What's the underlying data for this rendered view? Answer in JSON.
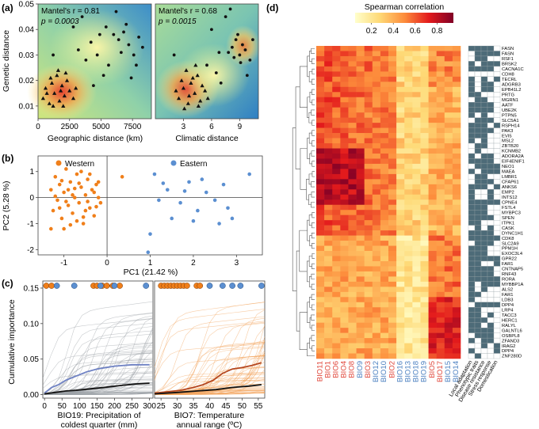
{
  "chart_data": [
    {
      "panel": "(a)",
      "type": "scatter",
      "subplots": [
        {
          "xlabel": "Geographic distance (km)",
          "ylabel": "Genetic distance",
          "xticks": [
            "0",
            "2500",
            "5000",
            "7500"
          ],
          "xlim": [
            0,
            9000
          ],
          "yticks": [
            "0.01",
            "0.02",
            "0.03",
            "0.04",
            "0.05"
          ],
          "ylim": [
            0.005,
            0.05
          ],
          "stat_r": "Mantel's r = 0.81",
          "stat_p": "p = 0.0003",
          "triangles": [
            [
              400,
              0.013
            ],
            [
              600,
              0.017
            ],
            [
              900,
              0.011
            ],
            [
              1100,
              0.019
            ],
            [
              1300,
              0.015
            ],
            [
              1500,
              0.022
            ],
            [
              1700,
              0.012
            ],
            [
              1900,
              0.018
            ],
            [
              2100,
              0.014
            ],
            [
              2300,
              0.02
            ],
            [
              2500,
              0.016
            ],
            [
              2800,
              0.013
            ],
            [
              1000,
              0.021
            ],
            [
              1600,
              0.024
            ],
            [
              2200,
              0.023
            ],
            [
              700,
              0.015
            ],
            [
              1200,
              0.01
            ],
            [
              2000,
              0.01
            ],
            [
              3000,
              0.017
            ],
            [
              1800,
              0.016
            ]
          ],
          "circles": [
            [
              3200,
              0.032
            ],
            [
              3800,
              0.028
            ],
            [
              4200,
              0.035
            ],
            [
              4700,
              0.03
            ],
            [
              5200,
              0.022
            ],
            [
              5600,
              0.026
            ],
            [
              6000,
              0.038
            ],
            [
              6400,
              0.036
            ],
            [
              6800,
              0.039
            ],
            [
              7200,
              0.034
            ],
            [
              7600,
              0.03
            ],
            [
              8000,
              0.037
            ],
            [
              5400,
              0.041
            ],
            [
              6600,
              0.031
            ],
            [
              4400,
              0.018
            ],
            [
              7000,
              0.042
            ],
            [
              7800,
              0.026
            ],
            [
              3500,
              0.045
            ],
            [
              6200,
              0.047
            ],
            [
              8300,
              0.033
            ],
            [
              1200,
              0.03
            ],
            [
              4900,
              0.038
            ],
            [
              7400,
              0.021
            ],
            [
              2800,
              0.041
            ]
          ]
        },
        {
          "xlabel": "Climatic distance",
          "ylabel": "",
          "xticks": [
            "3",
            "6",
            "9"
          ],
          "xlim": [
            0,
            11
          ],
          "yticks": [],
          "ylim": [
            0.005,
            0.05
          ],
          "stat_r": "Mantel's r = 0.68",
          "stat_p": "p = 0.0015",
          "triangles": [
            [
              2.5,
              0.013
            ],
            [
              3,
              0.017
            ],
            [
              3.5,
              0.011
            ],
            [
              3.8,
              0.019
            ],
            [
              4.2,
              0.015
            ],
            [
              4.5,
              0.022
            ],
            [
              4.8,
              0.012
            ],
            [
              5,
              0.018
            ],
            [
              2.8,
              0.02
            ],
            [
              3.3,
              0.024
            ],
            [
              4,
              0.021
            ],
            [
              5.3,
              0.016
            ],
            [
              3.6,
              0.014
            ],
            [
              2.2,
              0.016
            ],
            [
              4.6,
              0.01
            ],
            [
              5.6,
              0.013
            ],
            [
              3.1,
              0.009
            ],
            [
              4.3,
              0.026
            ]
          ],
          "circles": [
            [
              8.2,
              0.033
            ],
            [
              8.6,
              0.036
            ],
            [
              9,
              0.03
            ],
            [
              9.3,
              0.034
            ],
            [
              8.8,
              0.038
            ],
            [
              9.6,
              0.032
            ],
            [
              8.4,
              0.029
            ],
            [
              7.8,
              0.031
            ],
            [
              9.1,
              0.027
            ],
            [
              6.5,
              0.023
            ],
            [
              7,
              0.019
            ],
            [
              5.5,
              0.026
            ],
            [
              6,
              0.04
            ],
            [
              7.5,
              0.045
            ],
            [
              8,
              0.048
            ],
            [
              10.1,
              0.028
            ],
            [
              2,
              0.03
            ],
            [
              10.4,
              0.036
            ],
            [
              6.8,
              0.031
            ],
            [
              9.8,
              0.022
            ]
          ]
        }
      ]
    },
    {
      "panel": "(b)",
      "type": "scatter",
      "xlabel": "PC1 (21.42 %)",
      "ylabel": "PC2 (5.28 %)",
      "xticks": [
        "-1",
        "0",
        "1",
        "2",
        "3"
      ],
      "xlim": [
        -1.6,
        3.6
      ],
      "yticks": [
        "-2",
        "-1",
        "0",
        "1"
      ],
      "ylim": [
        -2.2,
        1.6
      ],
      "legend": [
        {
          "label": "Western",
          "color": "#f07f1a"
        },
        {
          "label": "Eastern",
          "color": "#5b8fd1"
        }
      ],
      "series": [
        {
          "name": "Western",
          "color": "#f07f1a",
          "points": [
            [
              -1.3,
              0.3
            ],
            [
              -1.25,
              -0.5
            ],
            [
              -1.2,
              0.8
            ],
            [
              -1.15,
              -0.1
            ],
            [
              -1.1,
              0.5
            ],
            [
              -1.05,
              -0.8
            ],
            [
              -1.0,
              0.2
            ],
            [
              -0.95,
              1.1
            ],
            [
              -0.9,
              -0.3
            ],
            [
              -0.85,
              0.6
            ],
            [
              -0.8,
              -0.6
            ],
            [
              -0.75,
              0.0
            ],
            [
              -0.7,
              0.9
            ],
            [
              -0.65,
              -0.2
            ],
            [
              -0.6,
              0.4
            ],
            [
              -0.55,
              -1.0
            ],
            [
              -0.5,
              0.1
            ],
            [
              -0.45,
              0.7
            ],
            [
              -0.4,
              -0.4
            ],
            [
              -0.35,
              0.3
            ],
            [
              -0.3,
              -0.7
            ],
            [
              -0.25,
              0.5
            ],
            [
              -0.2,
              0.0
            ],
            [
              -0.15,
              -0.2
            ],
            [
              -1.1,
              -0.4
            ],
            [
              -0.9,
              0.3
            ],
            [
              -0.7,
              -0.9
            ],
            [
              -0.6,
              1.0
            ],
            [
              -0.8,
              0.1
            ],
            [
              -1.0,
              -1.2
            ],
            [
              -0.5,
              -0.5
            ],
            [
              -0.4,
              0.9
            ],
            [
              -0.3,
              0.2
            ],
            [
              -0.65,
              0.55
            ],
            [
              -0.95,
              -0.15
            ],
            [
              -1.2,
              0.05
            ],
            [
              -0.85,
              -1.05
            ],
            [
              -0.45,
              -0.15
            ],
            [
              -0.75,
              0.35
            ],
            [
              -0.55,
              -0.75
            ],
            [
              -0.25,
              -0.35
            ],
            [
              -1.05,
              0.65
            ],
            [
              0.35,
              0.8
            ],
            [
              -1.3,
              -1.2
            ],
            [
              -0.2,
              0.6
            ]
          ]
        },
        {
          "name": "Eastern",
          "color": "#5b8fd1",
          "points": [
            [
              1.1,
              0.9
            ],
            [
              1.4,
              0.3
            ],
            [
              1.7,
              -0.2
            ],
            [
              1.9,
              0.6
            ],
            [
              2.1,
              -0.5
            ],
            [
              2.3,
              0.2
            ],
            [
              2.5,
              -0.1
            ],
            [
              2.7,
              0.5
            ],
            [
              2.9,
              -0.8
            ],
            [
              1.5,
              -0.8
            ],
            [
              2.0,
              -0.9
            ],
            [
              2.6,
              -1.0
            ],
            [
              1.2,
              -0.1
            ],
            [
              3.3,
              0.9
            ],
            [
              1.0,
              -1.4
            ],
            [
              0.95,
              -2.1
            ],
            [
              2.2,
              0.7
            ],
            [
              1.8,
              0.25
            ],
            [
              2.8,
              -0.4
            ],
            [
              1.3,
              0.55
            ]
          ]
        }
      ]
    },
    {
      "panel": "(c)",
      "type": "line",
      "ylabel": "Cumulative importance",
      "yticks": [
        "0.00",
        "0.05",
        "0.10",
        "0.15"
      ],
      "ylim": [
        -0.005,
        0.16
      ],
      "subplots": [
        {
          "xlabel_line1": "BIO19: Precipitation of",
          "xlabel_line2": "coldest quarter (mm)",
          "xticks": [
            "0",
            "50",
            "100",
            "150",
            "200",
            "250",
            "300"
          ],
          "xlim": [
            -5,
            310
          ],
          "rug_orange": [
            5,
            20,
            140,
            150,
            165,
            178,
            195,
            215
          ],
          "rug_blue": [
            35,
            85,
            160,
            200,
            290
          ],
          "median_blue": [
            [
              0,
              0.002
            ],
            [
              20,
              0.01
            ],
            [
              40,
              0.014
            ],
            [
              60,
              0.02
            ],
            [
              90,
              0.026
            ],
            [
              120,
              0.032
            ],
            [
              150,
              0.036
            ],
            [
              200,
              0.04
            ],
            [
              250,
              0.042
            ],
            [
              300,
              0.042
            ]
          ],
          "median_black": [
            [
              0,
              0.001
            ],
            [
              30,
              0.003
            ],
            [
              60,
              0.005
            ],
            [
              90,
              0.006
            ],
            [
              130,
              0.008
            ],
            [
              170,
              0.01
            ],
            [
              220,
              0.013
            ],
            [
              260,
              0.015
            ],
            [
              300,
              0.016
            ]
          ]
        },
        {
          "xlabel_line1": "BIO7: Temperature",
          "xlabel_line2": "annual range (ºC)",
          "xticks": [
            "25",
            "30",
            "35",
            "40",
            "45",
            "50",
            "55"
          ],
          "xlim": [
            23,
            57
          ],
          "rug_orange": [
            25,
            26,
            27,
            28,
            29,
            30,
            31,
            32,
            33,
            36,
            37
          ],
          "rug_blue": [
            40,
            44,
            47,
            49.5,
            56
          ],
          "median_orange": [
            [
              23,
              0.002
            ],
            [
              27,
              0.004
            ],
            [
              31,
              0.006
            ],
            [
              35,
              0.01
            ],
            [
              38,
              0.014
            ],
            [
              41,
              0.02
            ],
            [
              44,
              0.03
            ],
            [
              47,
              0.036
            ],
            [
              50,
              0.038
            ],
            [
              53,
              0.041
            ],
            [
              56,
              0.045
            ]
          ],
          "median_black": [
            [
              23,
              0.001
            ],
            [
              30,
              0.003
            ],
            [
              36,
              0.005
            ],
            [
              42,
              0.007
            ],
            [
              47,
              0.01
            ],
            [
              52,
              0.012
            ],
            [
              56,
              0.014
            ]
          ]
        }
      ]
    },
    {
      "panel": "(d)",
      "type": "heatmap",
      "colorbar_title": "Spearman correlation",
      "colorbar_ticks": [
        "0.2",
        "0.4",
        "0.6",
        "0.8"
      ],
      "colorbar_range": [
        0.05,
        0.95
      ],
      "columns": [
        "BIO11",
        "BIO1",
        "BIO6",
        "BIO4",
        "BIO8",
        "BIO9",
        "BIO3",
        "BIO12",
        "BIO10",
        "BIO2",
        "BIO16",
        "BIO13",
        "BIO18",
        "BIO19",
        "BIO5",
        "BIO17",
        "BIO15",
        "BIO14"
      ],
      "column_colors": [
        "#e0463a",
        "#e0463a",
        "#e0463a",
        "#e0463a",
        "#e0463a",
        "#4a7fc0",
        "#e0463a",
        "#4a7fc0",
        "#4a7fc0",
        "#e0463a",
        "#4a7fc0",
        "#4a7fc0",
        "#4a7fc0",
        "#4a7fc0",
        "#e0463a",
        "#e0463a",
        "#4a7fc0",
        "#4a7fc0"
      ],
      "rows": [
        "FASN",
        "FASN",
        "RSF1",
        "BRSK2",
        "CACNA1C",
        "CDH8",
        "TECRL",
        "ADGRB3",
        "EPB41L2",
        "PRTG",
        "MGRN1",
        "AATF",
        "UBE2K",
        "PTPN5",
        "SLC5A1",
        "RSPH14",
        "PAK3",
        "EVI5",
        "MSL2",
        "ZBTB20",
        "KCNMB2",
        "ADORA2A",
        "EIF4ENIF1",
        "NEO1",
        "MAEA",
        "LMBR1",
        "CFAP61",
        "ANKS6",
        "EMP2",
        "INTS12",
        "CPNE4",
        "FSTL4",
        "MYBPC3",
        "SPEN",
        "ITPK1",
        "CASK",
        "DYNC1H1",
        "CDK8",
        "SLC2A9",
        "PPM1H",
        "EXOC3L4",
        "GPR22",
        "FAR1",
        "CNTNAP5",
        "RNF43",
        "RORA",
        "MYBBP1A",
        "ALS2",
        "FAR1",
        "LDB3",
        "DPP4",
        "LRP4",
        "TACC3",
        "HERC1",
        "RALYL",
        "GALNTL6",
        "OSBPL8",
        "ZFAND3",
        "IRAG2",
        "DPP4",
        "ZNF280D"
      ],
      "annotation_columns": [
        "Local adaptation",
        "Phenotypic traits",
        "Disease resistance",
        "Stress response",
        "Domestication"
      ]
    }
  ]
}
